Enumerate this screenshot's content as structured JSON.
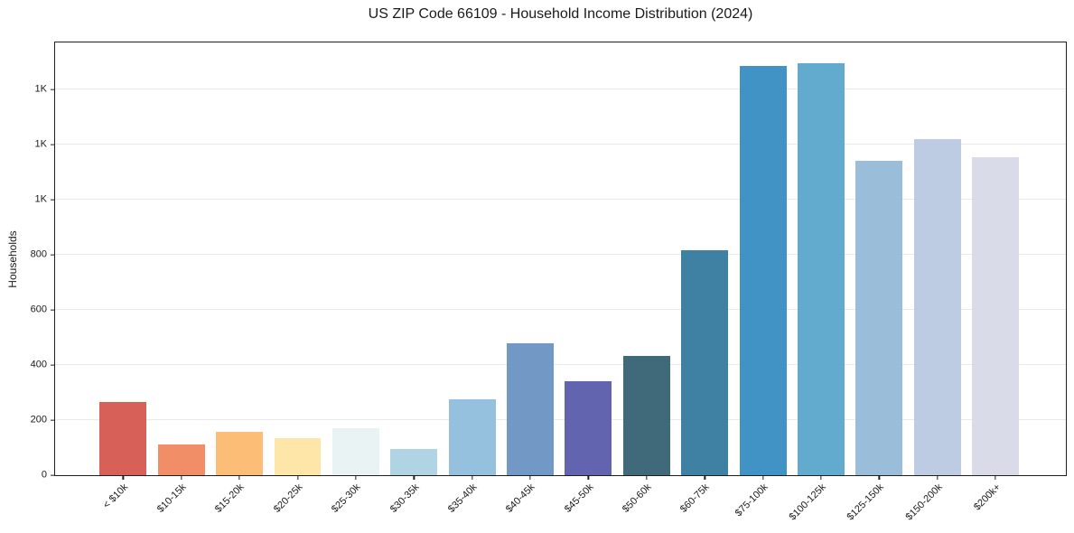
{
  "header": {
    "title": "US ZIP Code 66109 - Household Income Distribution (2024)"
  },
  "chart_data": {
    "type": "bar",
    "title": "US ZIP Code 66109 - Household Income Distribution (2024)",
    "xlabel": "",
    "ylabel": "Households",
    "ylim": [
      0,
      1570
    ],
    "grid": "horizontal",
    "legend": "none",
    "categories": [
      "< $10k",
      "$10-15k",
      "$15-20k",
      "$20-25k",
      "$25-30k",
      "$30-35k",
      "$35-40k",
      "$40-45k",
      "$45-50k",
      "$50-60k",
      "$60-75k",
      "$75-100k",
      "$100-125k",
      "$125-150k",
      "$150-200k",
      "$200k+"
    ],
    "values": [
      265,
      112,
      157,
      135,
      171,
      96,
      276,
      480,
      341,
      433,
      815,
      1485,
      1495,
      1140,
      1220,
      1155
    ],
    "bar_colors": [
      "#d5574f",
      "#f0875f",
      "#fcba70",
      "#fde5a3",
      "#e8f2f3",
      "#add2e3",
      "#8fbedc",
      "#6a93c3",
      "#5b5cab",
      "#366173",
      "#357a9e",
      "#378dc2",
      "#5ba5cc",
      "#95bad8",
      "#bac9e1",
      "#d8d9e8"
    ],
    "y_ticks": [
      {
        "value": 0,
        "label": "0"
      },
      {
        "value": 200,
        "label": "200"
      },
      {
        "value": 400,
        "label": "400"
      },
      {
        "value": 600,
        "label": "600"
      },
      {
        "value": 800,
        "label": "800"
      },
      {
        "value": 1000,
        "label": "1K"
      },
      {
        "value": 1200,
        "label": "1K"
      },
      {
        "value": 1400,
        "label": "1K"
      }
    ],
    "colors": {
      "frame": "#1f1f1f",
      "grid": "#e9e9e9",
      "text": "#1a1a1a",
      "background": "#ffffff"
    }
  }
}
